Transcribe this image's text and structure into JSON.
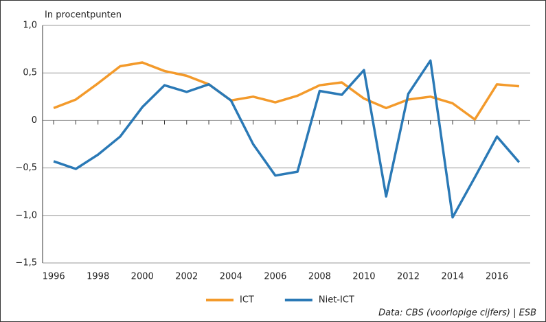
{
  "chart_data": {
    "type": "line",
    "title": "In procentpunten",
    "source": "Data: CBS (voorlopige cijfers) | ESB",
    "x": [
      1996,
      1997,
      1998,
      1999,
      2000,
      2001,
      2002,
      2003,
      2004,
      2005,
      2006,
      2007,
      2008,
      2009,
      2010,
      2011,
      2012,
      2013,
      2014,
      2015,
      2016,
      2017
    ],
    "series": [
      {
        "name": "ICT",
        "color": "#f39a2b",
        "values": [
          0.13,
          0.22,
          0.39,
          0.57,
          0.61,
          0.52,
          0.47,
          0.38,
          0.21,
          0.25,
          0.19,
          0.26,
          0.37,
          0.4,
          0.23,
          0.13,
          0.22,
          0.25,
          0.18,
          0.01,
          0.38,
          0.36
        ]
      },
      {
        "name": "Niet-ICT",
        "color": "#2a79b6",
        "values": [
          -0.43,
          -0.51,
          -0.36,
          -0.17,
          0.14,
          0.37,
          0.3,
          0.38,
          0.21,
          -0.25,
          -0.58,
          -0.54,
          0.31,
          0.27,
          0.53,
          -0.8,
          0.28,
          0.63,
          -1.02,
          -0.6,
          -0.17,
          -0.44
        ]
      }
    ],
    "xlim": [
      1995.5,
      2017.5
    ],
    "xticks": [
      1996,
      1998,
      2000,
      2002,
      2004,
      2006,
      2008,
      2010,
      2012,
      2014,
      2016
    ],
    "xticks_minor": [
      1997,
      1999,
      2001,
      2003,
      2005,
      2007,
      2009,
      2011,
      2013,
      2015,
      2017
    ],
    "ylim": [
      -1.5,
      1.0
    ],
    "yticks": [
      {
        "value": -1.5,
        "label": "−1,5"
      },
      {
        "value": -1.0,
        "label": "−1,0"
      },
      {
        "value": -0.5,
        "label": "−0,5"
      },
      0,
      {
        "value": 0.5,
        "label": "0,5"
      },
      {
        "value": 1.0,
        "label": "1,0"
      }
    ],
    "grid": true,
    "legend": "bottom"
  }
}
